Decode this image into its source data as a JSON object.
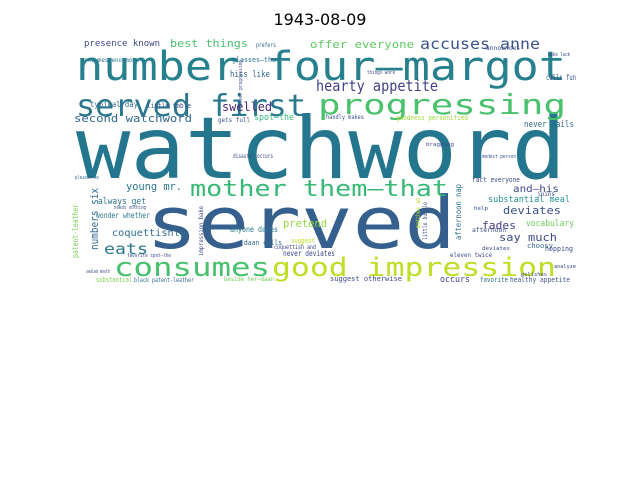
{
  "title": "1943-08-09",
  "chart_data": {
    "type": "wordcloud",
    "title": "1943-08-09",
    "words": [
      {
        "text": "watchword",
        "color": "#23768e"
      },
      {
        "text": "served",
        "color": "#355f8d"
      },
      {
        "text": "number four—margot",
        "color": "#27808e"
      },
      {
        "text": "served first",
        "color": "#2a788e"
      },
      {
        "text": "progressing",
        "color": "#4ac16d"
      },
      {
        "text": "mother them—that",
        "color": "#38b977"
      },
      {
        "text": "good impression",
        "color": "#bddf26"
      },
      {
        "text": "consumes",
        "color": "#48c16e"
      },
      {
        "text": "accuses anne",
        "color": "#3a538b"
      },
      {
        "text": "hearty appetite",
        "color": "#424086"
      },
      {
        "text": "eats",
        "color": "#2a778e"
      },
      {
        "text": "swelled",
        "color": "#482878"
      },
      {
        "text": "second watchword",
        "color": "#31688e"
      },
      {
        "text": "offer everyone",
        "color": "#5ec962"
      },
      {
        "text": "best things",
        "color": "#4ac16d"
      },
      {
        "text": "presence known",
        "color": "#3e4989"
      },
      {
        "text": "numbers six",
        "color": "#31688e"
      },
      {
        "text": "young mr.",
        "color": "#2a788e"
      },
      {
        "text": "deviates",
        "color": "#3b528b"
      },
      {
        "text": "say much",
        "color": "#3e4a89"
      },
      {
        "text": "fades",
        "color": "#433e85"
      },
      {
        "text": "and—his",
        "color": "#3e4989"
      },
      {
        "text": "pretend",
        "color": "#95d840"
      },
      {
        "text": "always get",
        "color": "#2c728e"
      },
      {
        "text": "coquettishly",
        "color": "#2d708e"
      },
      {
        "text": "substantial meal",
        "color": "#21918c"
      },
      {
        "text": "vocabulary",
        "color": "#6ece58"
      },
      {
        "text": "hiss like",
        "color": "#33638d"
      },
      {
        "text": "spot—the",
        "color": "#35b779"
      },
      {
        "text": "never fails",
        "color": "#31688e"
      },
      {
        "text": "little table",
        "color": "#3b528b"
      },
      {
        "text": "typical day",
        "color": "#31688e"
      },
      {
        "text": "afternoon nap",
        "color": "#2c728e"
      },
      {
        "text": "wonder whether",
        "color": "#2a788e"
      },
      {
        "text": "patent-leather",
        "color": "#7ad151"
      },
      {
        "text": "occurs",
        "color": "#414487"
      },
      {
        "text": "calls fun",
        "color": "#3b528b"
      },
      {
        "text": "glasses—that",
        "color": "#2c728e"
      },
      {
        "text": "suggest otherwise",
        "color": "#3e4989"
      },
      {
        "text": "never deviates",
        "color": "#3e4989"
      },
      {
        "text": "anyone dares",
        "color": "#2a788e"
      },
      {
        "text": "daan calls",
        "color": "#31688e"
      },
      {
        "text": "fact everyone",
        "color": "#3e4989"
      },
      {
        "text": "healthy appetite",
        "color": "#3b528b"
      },
      {
        "text": "favorite",
        "color": "#31688e"
      },
      {
        "text": "hopping",
        "color": "#3e4989"
      },
      {
        "text": "choosy",
        "color": "#31688e"
      },
      {
        "text": "handly makes",
        "color": "#3b528b"
      },
      {
        "text": "gets full",
        "color": "#3b528b"
      },
      {
        "text": "little bundle",
        "color": "#3b528b"
      },
      {
        "text": "coquettish and",
        "color": "#3e4989"
      },
      {
        "text": "substantial",
        "color": "#7ad151"
      },
      {
        "text": "beside her—daan",
        "color": "#6ece58"
      },
      {
        "text": "black patent-leather",
        "color": "#31688e"
      },
      {
        "text": "impression bake",
        "color": "#3e4989"
      },
      {
        "text": "goodness personified",
        "color": "#a0da39"
      },
      {
        "text": "suggest",
        "color": "#bddf26"
      },
      {
        "text": "prefers",
        "color": "#31688e"
      },
      {
        "text": "announces",
        "color": "#3e4989"
      },
      {
        "text": "consumes enormous",
        "color": "#2a788e"
      },
      {
        "text": "modest person",
        "color": "#3b528b"
      },
      {
        "text": "things work",
        "color": "#3e4989"
      },
      {
        "text": "never progressing",
        "color": "#3e4989"
      },
      {
        "text": "disaster occurs",
        "color": "#3e4989"
      },
      {
        "text": "pleases us",
        "color": "#31688e"
      },
      {
        "text": "needs nothing",
        "color": "#3b528b"
      },
      {
        "text": "sealed mouth",
        "color": "#3e4989"
      },
      {
        "text": "favorite spot—the",
        "color": "#3e4989"
      },
      {
        "text": "matches ad",
        "color": "#bddf26"
      },
      {
        "text": "afternoon",
        "color": "#3e4989"
      },
      {
        "text": "joins",
        "color": "#3e4989"
      },
      {
        "text": "help",
        "color": "#3b528b"
      },
      {
        "text": "analyze",
        "color": "#3e4989"
      },
      {
        "text": "polishes",
        "color": "#3e4989"
      },
      {
        "text": "eleven twice",
        "color": "#3e4989"
      },
      {
        "text": "deviates",
        "color": "#3e4989"
      },
      {
        "text": "bragging",
        "color": "#3e4989"
      },
      {
        "text": "wake luck",
        "color": "#3e4989"
      }
    ]
  }
}
